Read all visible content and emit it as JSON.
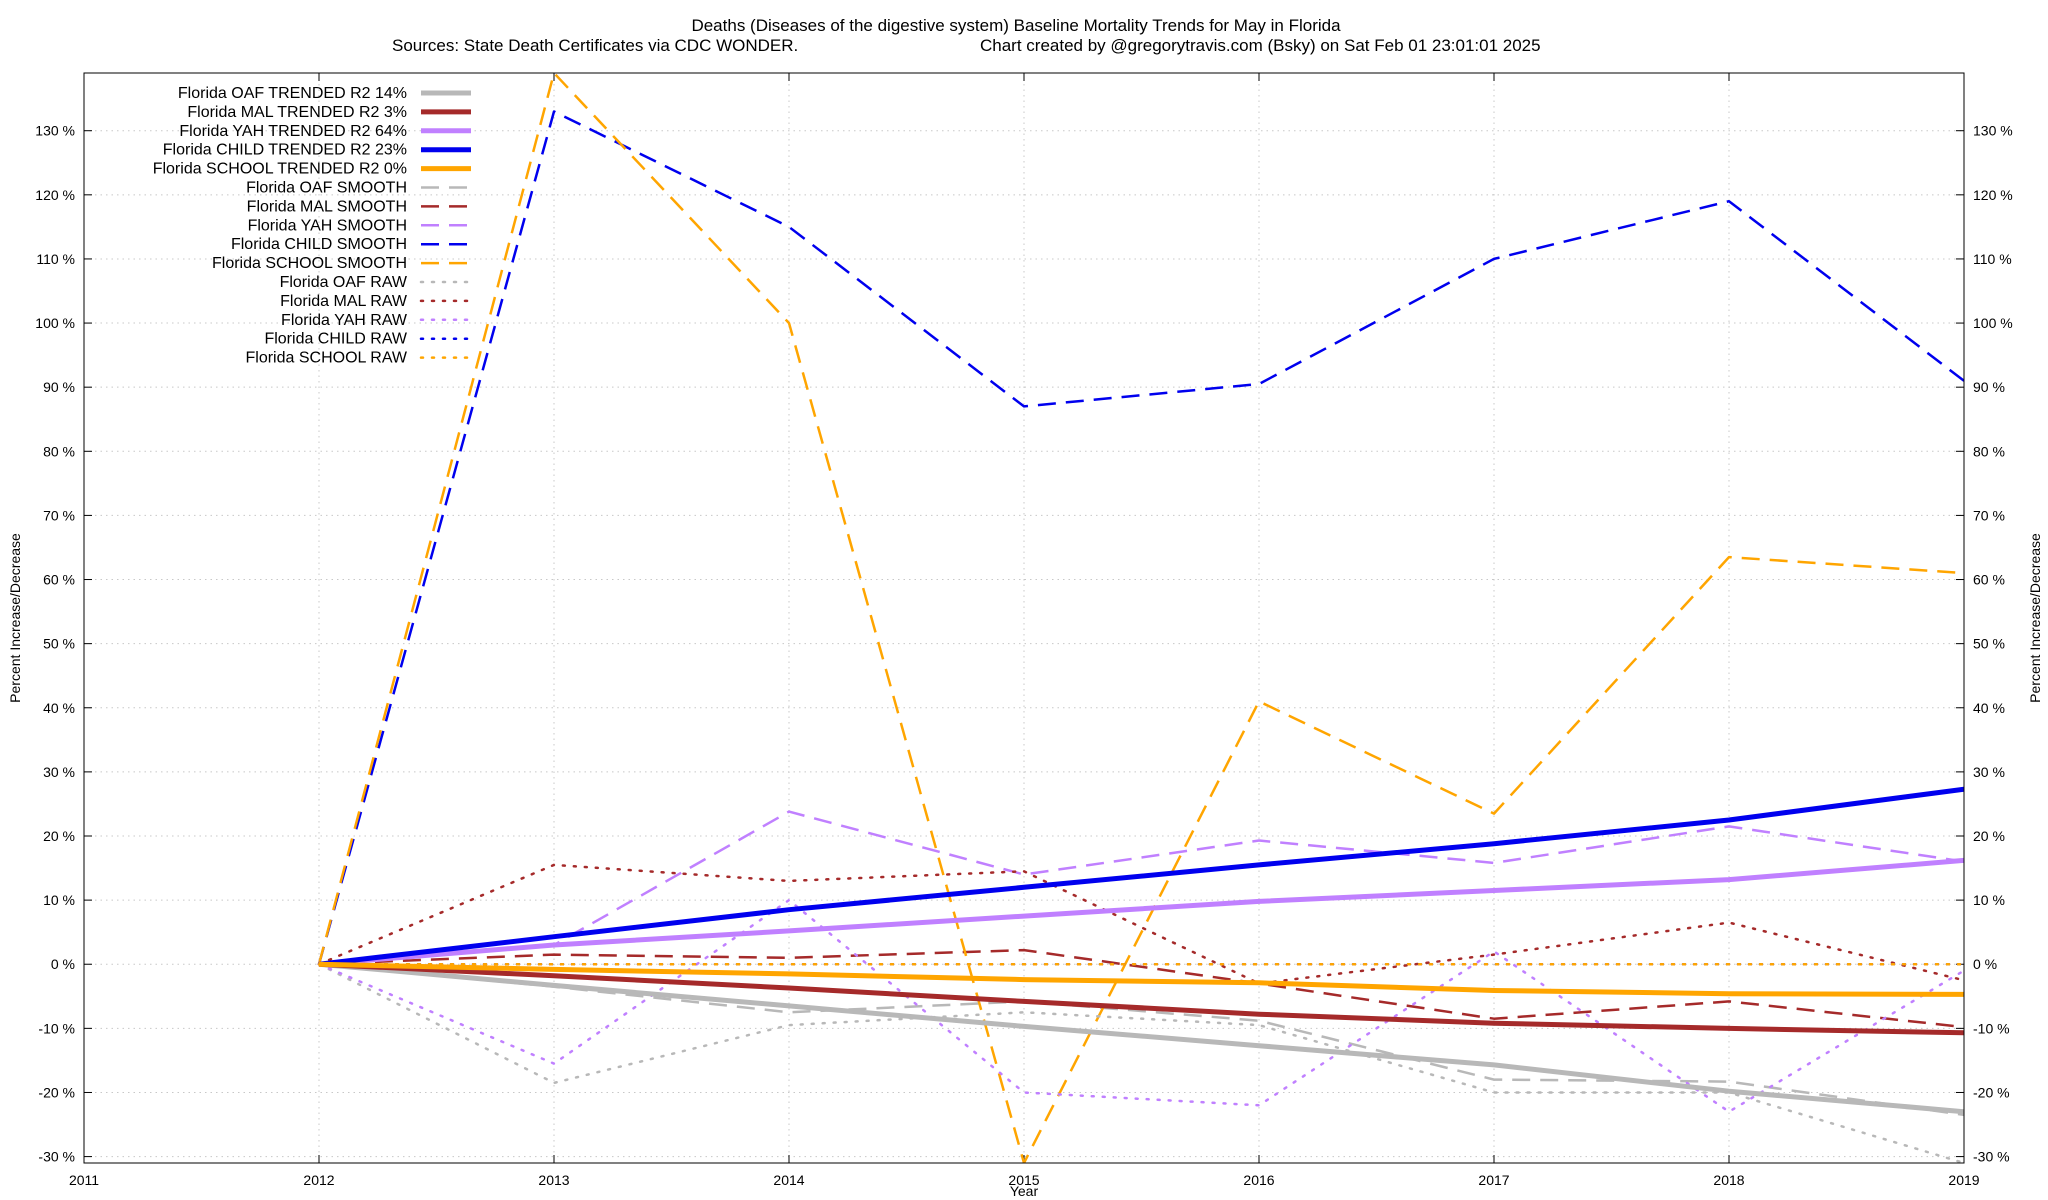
{
  "chart_data": {
    "type": "line",
    "title_line1": "Deaths (Diseases of the digestive system)  Baseline Mortality Trends for May in Florida",
    "title_line2_left": "Sources: State Death Certificates via CDC WONDER.",
    "title_line2_right": "Chart created by @gregorytravis.com (Bsky) on Sat Feb 01 23:01:01 2025",
    "xlabel": "Year",
    "ylabel_left": "Percent Increase/Decrease",
    "ylabel_right": "Percent Increase/Decrease",
    "xlim": [
      2011,
      2019
    ],
    "ylim": [
      -31,
      139
    ],
    "x_ticks": [
      2011,
      2012,
      2013,
      2014,
      2015,
      2016,
      2017,
      2018,
      2019
    ],
    "x_tick_labels": [
      "2011",
      "2012",
      "2013",
      "2014",
      "2015",
      "2016",
      "2017",
      "2018",
      "2019"
    ],
    "y_ticks": [
      -30,
      -20,
      -10,
      0,
      10,
      20,
      30,
      40,
      50,
      60,
      70,
      80,
      90,
      100,
      110,
      120,
      130
    ],
    "y_tick_labels": [
      "-30 %",
      "-20 %",
      "-10 %",
      "0 %",
      "10 %",
      "20 %",
      "30 %",
      "40 %",
      "50 %",
      "60 %",
      "70 %",
      "80 %",
      "90 %",
      "100 %",
      "110 %",
      "120 %",
      "130 %"
    ],
    "grid": true,
    "legend_position": "top-left",
    "series": [
      {
        "name": "Florida OAF TRENDED R2  14%",
        "style": "solid",
        "width": 5,
        "color": "#b8b8b8",
        "x": [
          2012,
          2013,
          2014,
          2015,
          2016,
          2017,
          2018,
          2019
        ],
        "y": [
          0,
          -3.3,
          -6.5,
          -9.7,
          -12.7,
          -15.7,
          -19.8,
          -23.0
        ]
      },
      {
        "name": "Florida MAL TRENDED R2   3%",
        "style": "solid",
        "width": 5,
        "color": "#a52a2a",
        "x": [
          2012,
          2013,
          2014,
          2015,
          2016,
          2017,
          2018,
          2019
        ],
        "y": [
          0,
          -1.8,
          -3.7,
          -5.8,
          -7.8,
          -9.2,
          -10.0,
          -10.7
        ]
      },
      {
        "name": "Florida YAH TRENDED R2  64%",
        "style": "solid",
        "width": 5,
        "color": "#c080ff",
        "x": [
          2012,
          2013,
          2014,
          2015,
          2016,
          2017,
          2018,
          2019
        ],
        "y": [
          0,
          3.0,
          5.2,
          7.5,
          9.8,
          11.5,
          13.2,
          16.2
        ]
      },
      {
        "name": "Florida CHILD TRENDED R2  23%",
        "style": "solid",
        "width": 5,
        "color": "#0000ee",
        "x": [
          2012,
          2013,
          2014,
          2015,
          2016,
          2017,
          2018,
          2019
        ],
        "y": [
          0,
          4.3,
          8.5,
          12.0,
          15.5,
          18.8,
          22.5,
          27.3
        ]
      },
      {
        "name": "Florida SCHOOL TRENDED R2   0%",
        "style": "solid",
        "width": 5,
        "color": "#ffa500",
        "x": [
          2012,
          2013,
          2014,
          2015,
          2016,
          2017,
          2018,
          2019
        ],
        "y": [
          0,
          -0.8,
          -1.5,
          -2.4,
          -2.9,
          -4.1,
          -4.6,
          -4.7
        ]
      },
      {
        "name": "Florida OAF SMOOTH",
        "style": "dashed",
        "width": 2.5,
        "color": "#b8b8b8",
        "x": [
          2012,
          2013,
          2014,
          2015,
          2016,
          2017,
          2018,
          2019
        ],
        "y": [
          0,
          -3.5,
          -7.5,
          -5.8,
          -8.8,
          -18.0,
          -18.3,
          -23.5
        ]
      },
      {
        "name": "Florida MAL SMOOTH",
        "style": "dashed",
        "width": 2.5,
        "color": "#a52a2a",
        "x": [
          2012,
          2013,
          2014,
          2015,
          2016,
          2017,
          2018,
          2019
        ],
        "y": [
          0,
          1.5,
          1.0,
          2.2,
          -3.0,
          -8.5,
          -5.8,
          -9.8
        ]
      },
      {
        "name": "Florida YAH SMOOTH",
        "style": "dashed",
        "width": 2.5,
        "color": "#c080ff",
        "x": [
          2012,
          2013,
          2014,
          2015,
          2016,
          2017,
          2018,
          2019
        ],
        "y": [
          0,
          3.0,
          23.8,
          14.0,
          19.3,
          15.8,
          21.5,
          16.0
        ]
      },
      {
        "name": "Florida CHILD SMOOTH",
        "style": "dashed",
        "width": 2.5,
        "color": "#0000ee",
        "x": [
          2012,
          2013,
          2014,
          2015,
          2016,
          2017,
          2018,
          2019
        ],
        "y": [
          0,
          133.0,
          115.0,
          87.0,
          90.5,
          110.0,
          119.0,
          91.0
        ]
      },
      {
        "name": "Florida SCHOOL SMOOTH",
        "style": "dashed",
        "width": 2.5,
        "color": "#ffa500",
        "x": [
          2012,
          2013,
          2014,
          2015,
          2016,
          2017,
          2018,
          2019
        ],
        "y": [
          0,
          139.0,
          100.0,
          -31.0,
          41.0,
          23.5,
          63.5,
          61.0
        ]
      },
      {
        "name": "Florida OAF RAW",
        "style": "dotted",
        "width": 2.5,
        "color": "#b8b8b8",
        "x": [
          2012,
          2013,
          2014,
          2015,
          2016,
          2017,
          2018,
          2019
        ],
        "y": [
          0,
          -18.5,
          -9.5,
          -7.5,
          -9.5,
          -20.0,
          -20.0,
          -31.0
        ]
      },
      {
        "name": "Florida MAL RAW",
        "style": "dotted",
        "width": 2.5,
        "color": "#a52a2a",
        "x": [
          2012,
          2013,
          2014,
          2015,
          2016,
          2017,
          2018,
          2019
        ],
        "y": [
          0,
          15.5,
          13.0,
          14.5,
          -3.0,
          1.5,
          6.5,
          -2.5
        ]
      },
      {
        "name": "Florida YAH RAW",
        "style": "dotted",
        "width": 2.5,
        "color": "#c080ff",
        "x": [
          2012,
          2013,
          2014,
          2015,
          2016,
          2017,
          2018,
          2019
        ],
        "y": [
          0,
          -15.5,
          10.0,
          -20.0,
          -22.0,
          2.0,
          -23.0,
          -1.0
        ]
      },
      {
        "name": "Florida CHILD RAW",
        "style": "dotted",
        "width": 2.5,
        "color": "#0000ee",
        "x": [
          2012,
          2013,
          2014,
          2015,
          2016,
          2017,
          2018,
          2019
        ],
        "y": [
          0,
          0,
          0,
          0,
          0,
          0,
          0,
          0
        ]
      },
      {
        "name": "Florida SCHOOL RAW",
        "style": "dotted",
        "width": 2.5,
        "color": "#ffa500",
        "x": [
          2012,
          2013,
          2014,
          2015,
          2016,
          2017,
          2018,
          2019
        ],
        "y": [
          0,
          0,
          0,
          0,
          0,
          0,
          0,
          0
        ]
      }
    ]
  }
}
